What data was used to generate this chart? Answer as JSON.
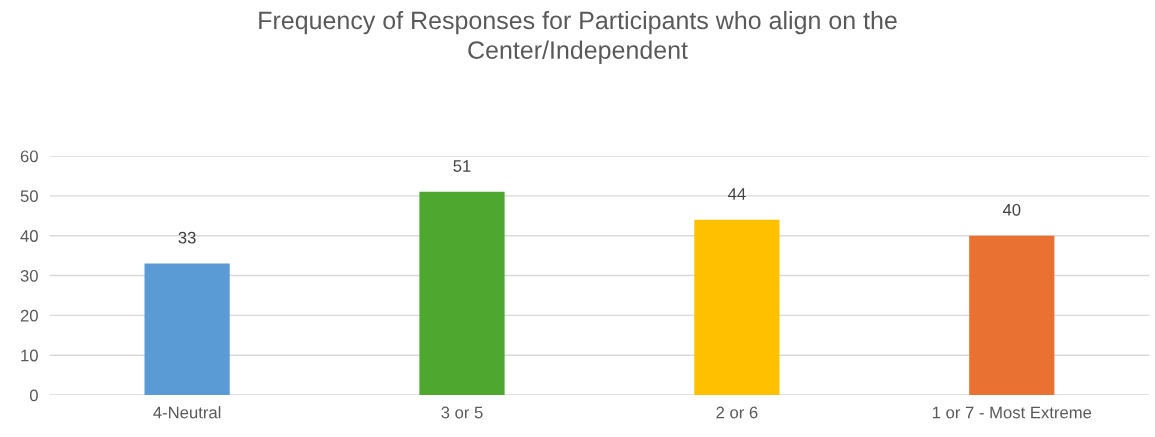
{
  "chart_data": {
    "type": "bar",
    "title": "Frequency of Responses for Participants who align on the\nCenter/Independent",
    "categories": [
      "4-Neutral",
      "3 or 5",
      "2 or 6",
      "1 or 7 - Most Extreme"
    ],
    "values": [
      33,
      51,
      44,
      40
    ],
    "colors": [
      "#5b9bd5",
      "#4ea72e",
      "#ffc000",
      "#e97132"
    ],
    "ylim": [
      0,
      60
    ],
    "yticks": [
      0,
      10,
      20,
      30,
      40,
      50,
      60
    ],
    "grid": "y",
    "data_labels": true,
    "legend": false
  }
}
